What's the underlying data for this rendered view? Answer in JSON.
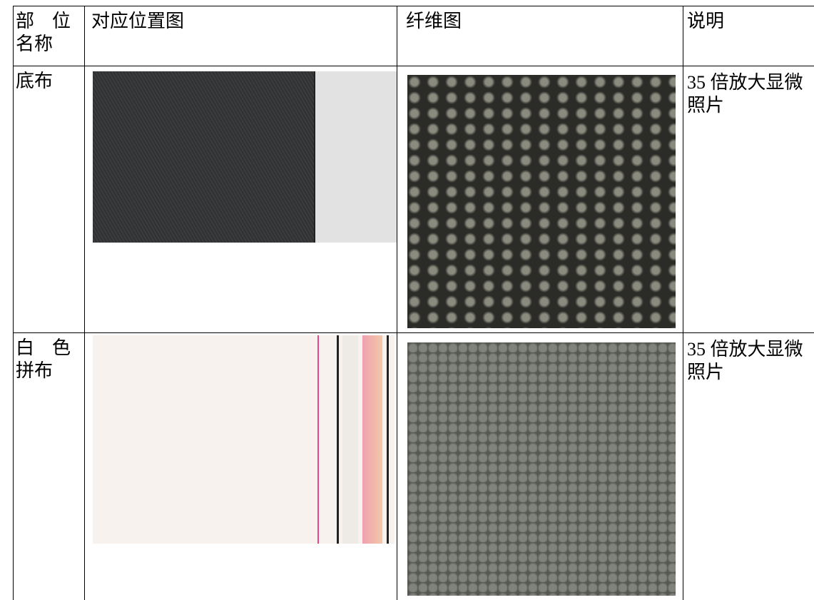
{
  "table": {
    "header": [
      "部位名称",
      "对应位置图",
      "纤维图",
      "说明"
    ],
    "rows": [
      [
        "底布",
        "35 倍放大显微照片"
      ],
      [
        "白色拼布",
        "35 倍放大显微照片"
      ]
    ]
  }
}
